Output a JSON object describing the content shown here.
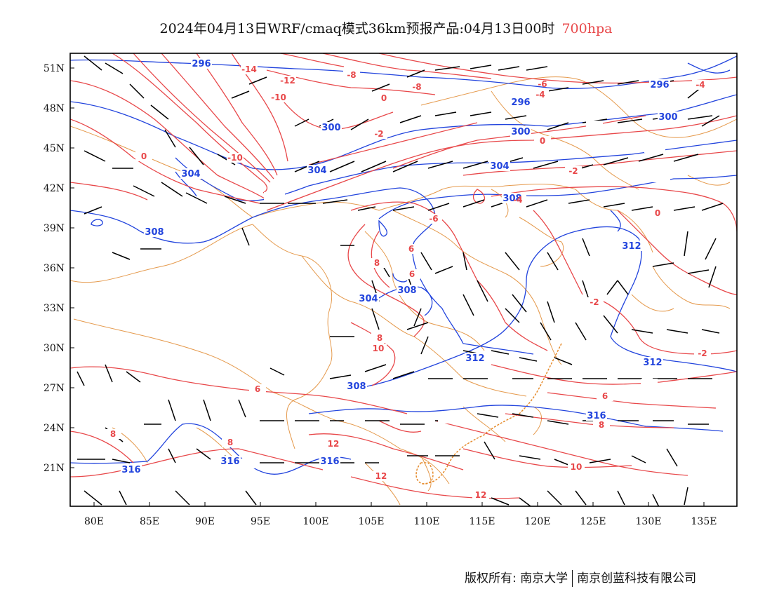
{
  "header": {
    "title": "2024年04月13日WRF/cmaq模式36km预报产品:04月13日00时",
    "level": "700hpa",
    "level_color": "#e8484a"
  },
  "footer": {
    "copyright_label": "版权所有:",
    "org1": "南京大学",
    "org2": "南京创蓝科技有限公司"
  },
  "map": {
    "lon_labels": [
      "80E",
      "85E",
      "90E",
      "95E",
      "100E",
      "105E",
      "110E",
      "115E",
      "120E",
      "125E",
      "130E",
      "135E"
    ],
    "lat_labels": [
      "51N",
      "48N",
      "45N",
      "42N",
      "39N",
      "36N",
      "33N",
      "30N",
      "27N",
      "24N",
      "21N"
    ],
    "colors": {
      "temperature": "#e8484a",
      "geopotential_height": "#2244dd",
      "boundary": "#e59a4d",
      "wind": "#000000"
    },
    "height_labels": [
      "296",
      "296",
      "300",
      "300",
      "304",
      "304",
      "308",
      "308",
      "312",
      "312",
      "316",
      "316",
      "316",
      "308",
      "304",
      "312",
      "304",
      "316",
      "300",
      "296",
      "308"
    ],
    "temp_labels": [
      "-14",
      "-12",
      "-10",
      "-8",
      "-8",
      "-6",
      "-4",
      "-4",
      "-2",
      "-2",
      "0",
      "0",
      "0",
      "0",
      "-2",
      "-2",
      "-6",
      "6",
      "6",
      "6",
      "8",
      "8",
      "10",
      "8",
      "12",
      "12",
      "10",
      "12",
      "6",
      "8",
      "8",
      "-10",
      "-4"
    ]
  }
}
